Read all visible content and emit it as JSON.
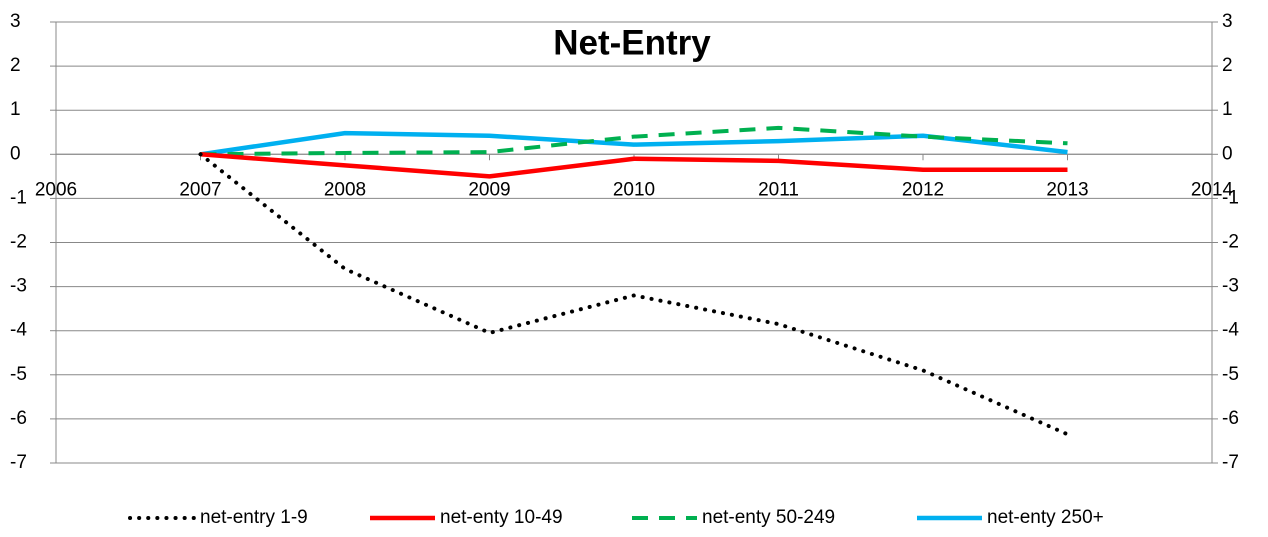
{
  "chart_data": {
    "type": "line",
    "title": "Net-Entry",
    "x": [
      2007,
      2008,
      2009,
      2010,
      2011,
      2012,
      2013
    ],
    "xlim": [
      2006,
      2014
    ],
    "xticks": [
      2006,
      2007,
      2008,
      2009,
      2010,
      2011,
      2012,
      2013,
      2014
    ],
    "ylim": [
      -7,
      3
    ],
    "yticks": [
      -7,
      -6,
      -5,
      -4,
      -3,
      -2,
      -1,
      0,
      1,
      2,
      3
    ],
    "y2lim": [
      -7,
      3
    ],
    "y2ticks": [
      -7,
      -6,
      -5,
      -4,
      -3,
      -2,
      -1,
      0,
      1,
      2,
      3
    ],
    "grid": true,
    "legend": "bottom",
    "series": [
      {
        "name": "net-entry 1-9",
        "color": "#000000",
        "style": "dotted",
        "values": [
          0,
          -2.6,
          -4.05,
          -3.2,
          -3.85,
          -4.9,
          -6.35
        ]
      },
      {
        "name": "net-enty 10-49",
        "color": "#ff0000",
        "style": "solid",
        "values": [
          0,
          -0.25,
          -0.5,
          -0.1,
          -0.15,
          -0.35,
          -0.35
        ]
      },
      {
        "name": "net-enty 50-249",
        "color": "#00b050",
        "style": "dashed",
        "values": [
          0,
          0.03,
          0.05,
          0.4,
          0.6,
          0.4,
          0.25
        ]
      },
      {
        "name": "net-enty 250+",
        "color": "#00b0f0",
        "style": "solid",
        "values": [
          0,
          0.48,
          0.42,
          0.22,
          0.3,
          0.42,
          0.05
        ]
      }
    ]
  }
}
